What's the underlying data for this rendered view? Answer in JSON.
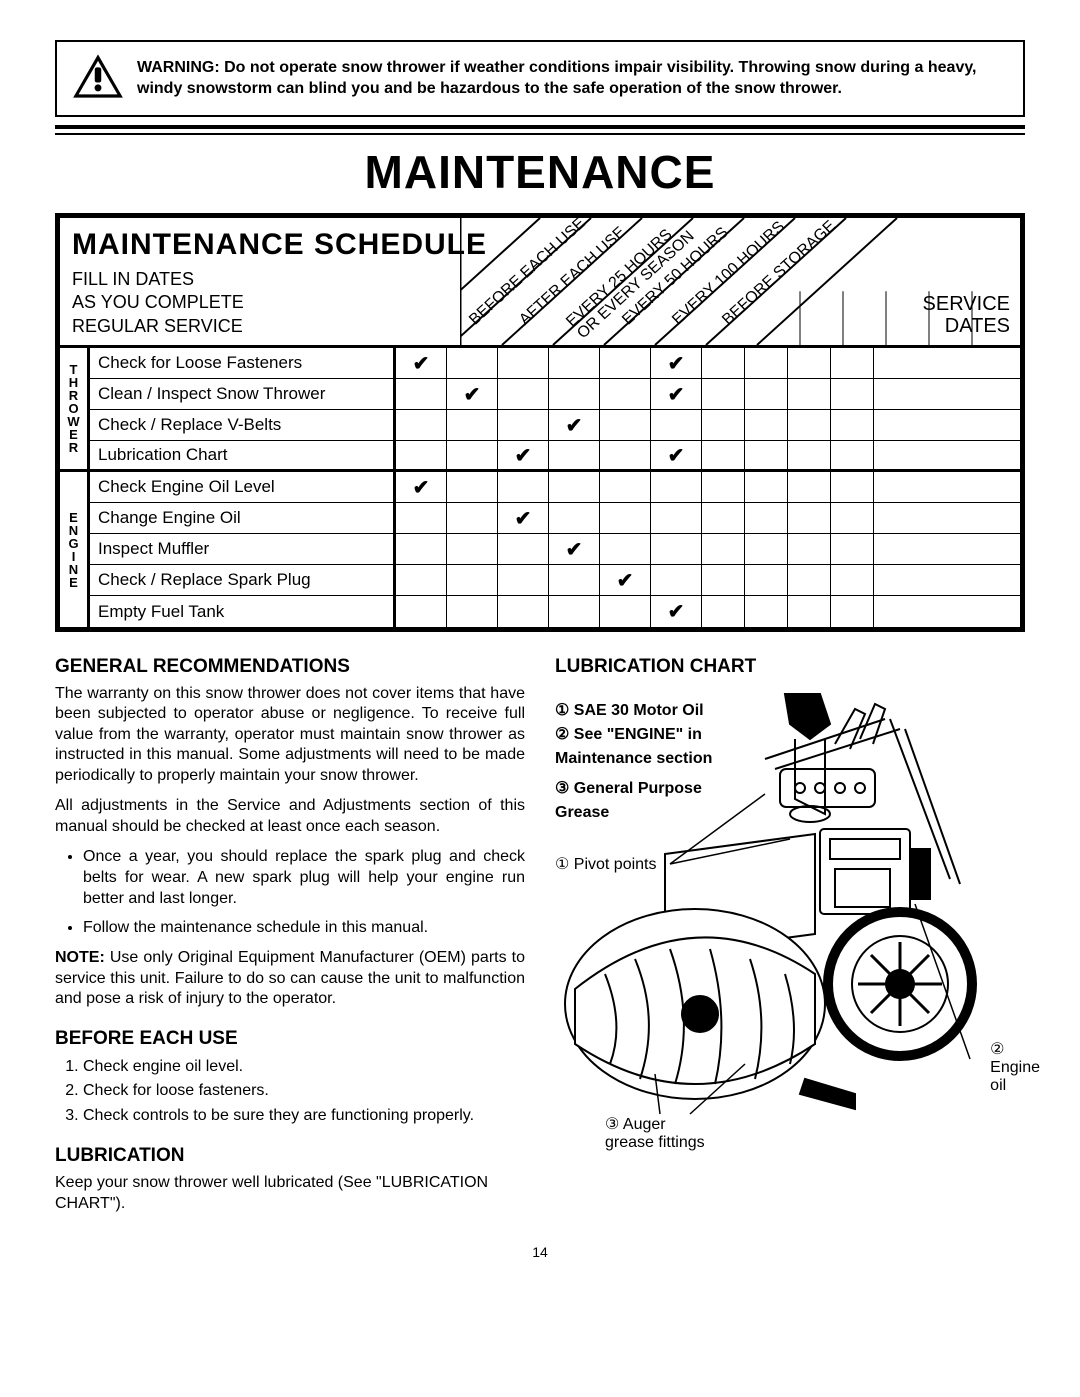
{
  "warning": {
    "bold_lead": "WARNING:",
    "text": "Do not operate snow thrower if weather conditions impair visibility.  Throwing snow during a heavy, windy snowstorm can blind you and be hazardous to the safe operation of the snow thrower."
  },
  "page_title": "MAINTENANCE",
  "schedule": {
    "heading": "MAINTENANCE SCHEDULE",
    "sub1": "FILL IN DATES",
    "sub2": "AS YOU COMPLETE",
    "sub3": "REGULAR SERVICE",
    "service_dates_l1": "SERVICE",
    "service_dates_l2": "DATES",
    "diag_labels": [
      "BEFORE EACH USE",
      "AFTER EACH USE",
      "EVERY 25 HOURS OR EVERY SEASON",
      "EVERY 50 HOURS",
      "EVERY 100 HOURS",
      "BEFORE STORAGE"
    ],
    "cats": [
      "THROWER",
      "ENGINE"
    ],
    "rows": [
      {
        "cat": 0,
        "task": "Check for Loose Fasteners",
        "cols": [
          true,
          false,
          false,
          false,
          false,
          true
        ]
      },
      {
        "cat": 0,
        "task": "Clean / Inspect Snow Thrower",
        "cols": [
          false,
          true,
          false,
          false,
          false,
          true
        ]
      },
      {
        "cat": 0,
        "task": "Check / Replace V-Belts",
        "cols": [
          false,
          false,
          false,
          true,
          false,
          false
        ]
      },
      {
        "cat": 0,
        "task": "Lubrication Chart",
        "cols": [
          false,
          false,
          true,
          false,
          false,
          true
        ]
      },
      {
        "cat": 1,
        "task": "Check Engine Oil Level",
        "cols": [
          true,
          false,
          false,
          false,
          false,
          false
        ]
      },
      {
        "cat": 1,
        "task": "Change Engine Oil",
        "cols": [
          false,
          false,
          true,
          false,
          false,
          false
        ]
      },
      {
        "cat": 1,
        "task": "Inspect Muffler",
        "cols": [
          false,
          false,
          false,
          true,
          false,
          false
        ]
      },
      {
        "cat": 1,
        "task": "Check / Replace Spark Plug",
        "cols": [
          false,
          false,
          false,
          false,
          true,
          false
        ]
      },
      {
        "cat": 1,
        "task": "Empty Fuel Tank",
        "cols": [
          false,
          false,
          false,
          false,
          false,
          true
        ]
      }
    ]
  },
  "left": {
    "gen_h": "GENERAL RECOMMENDATIONS",
    "gen_p1": "The warranty on this snow thrower does not cover items that have been subjected to operator abuse or negligence. To receive full value from the warranty, operator must maintain snow thrower as instructed in this manual.  Some adjustments will need to be made periodically to properly maintain your snow thrower.",
    "gen_p2": "All adjustments in the Service and Adjustments section of this manual should be checked at least once each season.",
    "bul1": "Once a year, you should replace the spark plug and check belts for wear.  A new spark plug will help your engine run better and last longer.",
    "bul2": "Follow the maintenance schedule in this manual.",
    "note_bold": "NOTE:",
    "note_text": "Use only Original Equipment Manufacturer (OEM) parts to service this unit.  Failure to do so can cause the unit to malfunction and pose a risk of injury to the operator.",
    "beu_h": "BEFORE EACH USE",
    "beu_1": "Check engine oil level.",
    "beu_2": "Check for loose fasteners.",
    "beu_3": "Check controls to be sure they are functioning properly.",
    "lub_h": "LUBRICATION",
    "lub_p": "Keep your snow thrower well lubricated (See \"LUBRICATION CHART\")."
  },
  "right": {
    "lc_h": "LUBRICATION CHART",
    "i1": "① SAE 30 Motor Oil",
    "i2": "② See \"ENGINE\" in Maintenance section",
    "i3": "③ General Purpose Grease",
    "c_pivot": "① Pivot points",
    "c_auger_l1": "③ Auger",
    "c_auger_l2": "grease fittings",
    "c_eng_l1": "②",
    "c_eng_l2": "Engine",
    "c_eng_l3": "oil"
  },
  "page_number": "14",
  "colors": {
    "ink": "#000000",
    "bg": "#ffffff"
  }
}
